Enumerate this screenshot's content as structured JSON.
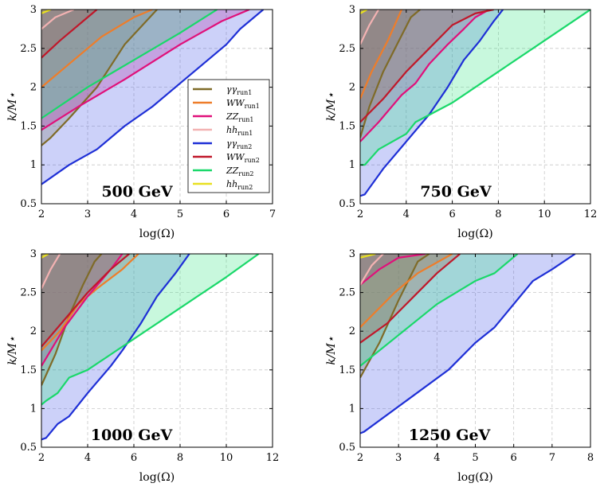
{
  "chart_data": [
    {
      "type": "area",
      "title": "500 GeV",
      "xlabel": "log(Ω)",
      "ylabel": "k/M⋆",
      "xlim": [
        2,
        7
      ],
      "ylim": [
        0.5,
        3
      ],
      "xticks": [
        2,
        3,
        4,
        5,
        6,
        7
      ],
      "yticks": [
        0.5,
        1,
        1.5,
        2,
        2.5,
        3
      ],
      "legend": "inside-right",
      "series": [
        {
          "name": "γγ run1",
          "color": "#7f6b28",
          "fill": "#8d7a2c",
          "x": [
            2,
            2.2,
            2.6,
            3.2,
            3.8,
            4.5
          ],
          "y": [
            1.25,
            1.35,
            1.6,
            2.0,
            2.55,
            3.0
          ]
        },
        {
          "name": "WW run1",
          "color": "#ee7d2a",
          "fill": "#e8823a",
          "x": [
            2,
            2.6,
            3.3,
            4.0,
            4.4
          ],
          "y": [
            2.0,
            2.3,
            2.65,
            2.9,
            3.0
          ]
        },
        {
          "name": "ZZ run1",
          "color": "#e0107a",
          "fill": "#d80f85",
          "x": [
            2,
            2.8,
            3.8,
            5.0,
            5.9,
            6.5
          ],
          "y": [
            1.45,
            1.75,
            2.1,
            2.55,
            2.85,
            3.0
          ]
        },
        {
          "name": "hh run1",
          "color": "#f3b2b2",
          "fill": "#f3b0b0",
          "x": [
            2,
            2.3,
            2.7
          ],
          "y": [
            2.75,
            2.9,
            3.0
          ]
        },
        {
          "name": "γγ run2",
          "color": "#1e2fd6",
          "fill": "#3a4fe8",
          "x": [
            2,
            2.6,
            3.2,
            3.8,
            4.4,
            5.0,
            5.5,
            6.0,
            6.3,
            6.8
          ],
          "y": [
            0.75,
            1.0,
            1.2,
            1.5,
            1.75,
            2.05,
            2.3,
            2.55,
            2.75,
            3.0
          ]
        },
        {
          "name": "WW run2",
          "color": "#c0182a",
          "fill": "#c01a30",
          "x": [
            2,
            2.4,
            2.9,
            3.2
          ],
          "y": [
            2.38,
            2.6,
            2.85,
            3.0
          ]
        },
        {
          "name": "ZZ run2",
          "color": "#1ad86a",
          "fill": "#2ce37a",
          "x": [
            2,
            3.0,
            4.0,
            5.0,
            5.8
          ],
          "y": [
            1.6,
            2.0,
            2.35,
            2.7,
            3.0
          ]
        },
        {
          "name": "hh run2",
          "color": "#e8e020",
          "fill": "#f1e840",
          "x": [
            2,
            2.2
          ],
          "y": [
            2.95,
            3.0
          ]
        }
      ]
    },
    {
      "type": "area",
      "title": "750 GeV",
      "xlabel": "log(Ω)",
      "ylabel": "k/M⋆",
      "xlim": [
        2,
        12
      ],
      "ylim": [
        0.5,
        3
      ],
      "xticks": [
        2,
        4,
        6,
        8,
        10,
        12
      ],
      "yticks": [
        0.5,
        1,
        1.5,
        2,
        2.5,
        3
      ],
      "series": [
        {
          "name": "γγ run1",
          "color": "#7f6b28",
          "fill": "#8d7a2c",
          "x": [
            2,
            2.4,
            3.0,
            3.6,
            4.2,
            4.6
          ],
          "y": [
            1.35,
            1.75,
            2.2,
            2.55,
            2.9,
            3.0
          ]
        },
        {
          "name": "WW run1",
          "color": "#ee7d2a",
          "fill": "#e8823a",
          "x": [
            2,
            2.5,
            3.2,
            3.8
          ],
          "y": [
            1.85,
            2.2,
            2.6,
            3.0
          ]
        },
        {
          "name": "ZZ run1",
          "color": "#e0107a",
          "fill": "#d80f85",
          "x": [
            2,
            2.8,
            3.8,
            4.4,
            5.0,
            5.8,
            6.5,
            7.0,
            7.6
          ],
          "y": [
            1.3,
            1.55,
            1.9,
            2.05,
            2.3,
            2.55,
            2.75,
            2.9,
            3.0
          ]
        },
        {
          "name": "hh run1",
          "color": "#f3b2b2",
          "fill": "#f3b0b0",
          "x": [
            2,
            2.4,
            2.8
          ],
          "y": [
            2.55,
            2.8,
            3.0
          ]
        },
        {
          "name": "γγ run2",
          "color": "#1e2fd6",
          "fill": "#3a4fe8",
          "x": [
            2,
            2.2,
            3.0,
            4.0,
            5.0,
            5.8,
            6.5,
            7.2,
            7.8,
            8.2
          ],
          "y": [
            0.6,
            0.62,
            0.95,
            1.3,
            1.65,
            2.0,
            2.35,
            2.6,
            2.85,
            3.0
          ]
        },
        {
          "name": "WW run2",
          "color": "#c0182a",
          "fill": "#c01a30",
          "x": [
            2,
            3.0,
            4.0,
            5.0,
            6.0,
            7.0,
            7.8
          ],
          "y": [
            1.55,
            1.85,
            2.2,
            2.5,
            2.8,
            2.95,
            3.0
          ]
        },
        {
          "name": "ZZ run2",
          "color": "#1ad86a",
          "fill": "#2ce37a",
          "x": [
            2,
            2.2,
            2.8,
            4.0,
            4.4,
            6.0,
            8.0,
            10.0,
            12.0
          ],
          "y": [
            1.0,
            1.0,
            1.2,
            1.4,
            1.55,
            1.8,
            2.2,
            2.6,
            3.0
          ]
        },
        {
          "name": "hh run2",
          "color": "#e8e020",
          "fill": "#f1e840",
          "x": [
            2,
            2.3
          ],
          "y": [
            2.95,
            3.0
          ]
        }
      ]
    },
    {
      "type": "area",
      "title": "1000 GeV",
      "xlabel": "log(Ω)",
      "ylabel": "k/M⋆",
      "xlim": [
        2,
        12
      ],
      "ylim": [
        0.5,
        3
      ],
      "xticks": [
        2,
        4,
        6,
        8,
        10,
        12
      ],
      "yticks": [
        0.5,
        1,
        1.5,
        2,
        2.5,
        3
      ],
      "series": [
        {
          "name": "γγ run1",
          "color": "#7f6b28",
          "fill": "#8d7a2c",
          "x": [
            2,
            2.6,
            3.2,
            3.8,
            4.3,
            4.6
          ],
          "y": [
            1.3,
            1.7,
            2.2,
            2.6,
            2.9,
            3.0
          ]
        },
        {
          "name": "WW run1",
          "color": "#ee7d2a",
          "fill": "#e8823a",
          "x": [
            2,
            2.8,
            3.6,
            4.4,
            5.5,
            6.2
          ],
          "y": [
            1.75,
            2.0,
            2.35,
            2.55,
            2.8,
            3.0
          ]
        },
        {
          "name": "ZZ run1",
          "color": "#e0107a",
          "fill": "#d80f85",
          "x": [
            2,
            3.0,
            4.0,
            5.0,
            5.5
          ],
          "y": [
            1.55,
            2.05,
            2.45,
            2.8,
            3.0
          ]
        },
        {
          "name": "hh run1",
          "color": "#f3b2b2",
          "fill": "#f3b0b0",
          "x": [
            2,
            2.4,
            2.8
          ],
          "y": [
            2.55,
            2.8,
            3.0
          ]
        },
        {
          "name": "γγ run2",
          "color": "#1e2fd6",
          "fill": "#3a4fe8",
          "x": [
            2,
            2.2,
            2.7,
            3.2,
            4.0,
            5.0,
            5.5,
            6.3,
            7.0,
            7.8,
            8.4
          ],
          "y": [
            0.6,
            0.62,
            0.8,
            0.9,
            1.2,
            1.55,
            1.75,
            2.1,
            2.45,
            2.75,
            3.0
          ]
        },
        {
          "name": "WW run2",
          "color": "#c0182a",
          "fill": "#c01a30",
          "x": [
            2,
            3.0,
            4.0,
            5.0,
            5.8
          ],
          "y": [
            1.8,
            2.15,
            2.5,
            2.8,
            3.0
          ]
        },
        {
          "name": "ZZ run2",
          "color": "#1ad86a",
          "fill": "#2ce37a",
          "x": [
            2,
            2.2,
            2.7,
            3.2,
            4.0,
            5.5,
            8.0,
            10.0,
            11.4
          ],
          "y": [
            1.05,
            1.1,
            1.2,
            1.4,
            1.5,
            1.8,
            2.3,
            2.7,
            3.0
          ]
        },
        {
          "name": "hh run2",
          "color": "#e8e020",
          "fill": "#f1e840",
          "x": [
            2,
            2.3
          ],
          "y": [
            2.95,
            3.0
          ]
        }
      ]
    },
    {
      "type": "area",
      "title": "1250 GeV",
      "xlabel": "log(Ω)",
      "ylabel": "k/M⋆",
      "xlim": [
        2,
        8
      ],
      "ylim": [
        0.5,
        3
      ],
      "xticks": [
        2,
        3,
        4,
        5,
        6,
        7,
        8
      ],
      "yticks": [
        0.5,
        1,
        1.5,
        2,
        2.5,
        3
      ],
      "series": [
        {
          "name": "γγ run1",
          "color": "#7f6b28",
          "fill": "#8d7a2c",
          "x": [
            2,
            2.5,
            3.0,
            3.5,
            3.8
          ],
          "y": [
            1.4,
            1.85,
            2.4,
            2.9,
            3.0
          ]
        },
        {
          "name": "WW run1",
          "color": "#ee7d2a",
          "fill": "#e8823a",
          "x": [
            2,
            2.4,
            2.9,
            3.5,
            4.4
          ],
          "y": [
            2.05,
            2.25,
            2.5,
            2.75,
            3.0
          ]
        },
        {
          "name": "ZZ run1",
          "color": "#e0107a",
          "fill": "#d80f85",
          "x": [
            2,
            2.5,
            3.0,
            3.7
          ],
          "y": [
            2.6,
            2.8,
            2.95,
            3.0
          ]
        },
        {
          "name": "hh run1",
          "color": "#f3b2b2",
          "fill": "#f3b0b0",
          "x": [
            2,
            2.3,
            2.6
          ],
          "y": [
            2.6,
            2.85,
            3.0
          ]
        },
        {
          "name": "γγ run2",
          "color": "#1e2fd6",
          "fill": "#3a4fe8",
          "x": [
            2,
            2.1,
            3.2,
            4.3,
            5.0,
            5.5,
            6.0,
            6.5,
            7.0,
            7.6
          ],
          "y": [
            0.68,
            0.7,
            1.1,
            1.5,
            1.85,
            2.05,
            2.35,
            2.65,
            2.8,
            3.0
          ]
        },
        {
          "name": "WW run2",
          "color": "#c0182a",
          "fill": "#c01a30",
          "x": [
            2,
            2.7,
            3.4,
            4.0,
            4.6
          ],
          "y": [
            1.85,
            2.1,
            2.45,
            2.75,
            3.0
          ]
        },
        {
          "name": "ZZ run2",
          "color": "#1ad86a",
          "fill": "#2ce37a",
          "x": [
            2,
            3.0,
            4.0,
            5.0,
            5.5,
            6.1
          ],
          "y": [
            1.55,
            1.95,
            2.35,
            2.65,
            2.75,
            3.0
          ]
        },
        {
          "name": "hh run2",
          "color": "#e8e020",
          "fill": "#f1e840",
          "x": [
            2,
            2.4
          ],
          "y": [
            2.95,
            3.0
          ]
        }
      ]
    }
  ],
  "legend_entries": [
    {
      "sym": "γγ",
      "sub": "run1",
      "color": "#7f6b28"
    },
    {
      "sym": "WW",
      "sub": "run1",
      "color": "#ee7d2a"
    },
    {
      "sym": "ZZ",
      "sub": "run1",
      "color": "#e0107a"
    },
    {
      "sym": "hh",
      "sub": "run1",
      "color": "#f3b2b2"
    },
    {
      "sym": "γγ",
      "sub": "run2",
      "color": "#1e2fd6"
    },
    {
      "sym": "WW",
      "sub": "run2",
      "color": "#c0182a"
    },
    {
      "sym": "ZZ",
      "sub": "run2",
      "color": "#1ad86a"
    },
    {
      "sym": "hh",
      "sub": "run2",
      "color": "#e8e020"
    }
  ]
}
